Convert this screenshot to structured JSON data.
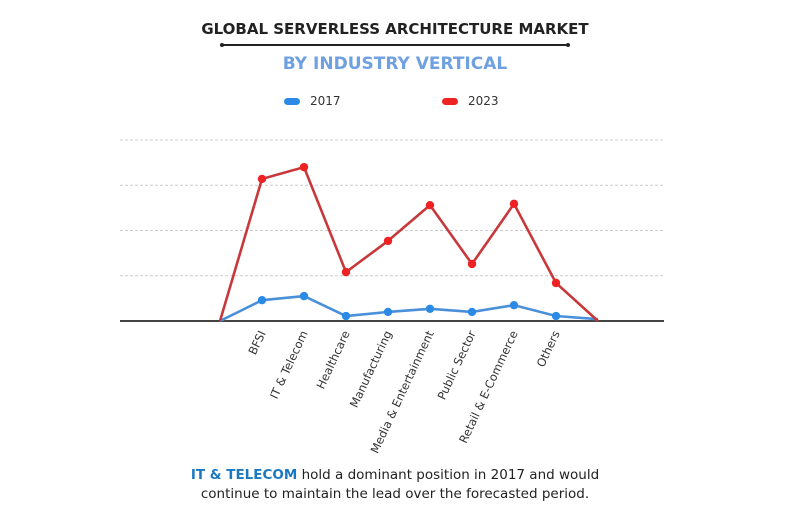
{
  "chart_data": {
    "type": "line",
    "title": "GLOBAL SERVERLESS ARCHITECTURE MARKET",
    "subtitle": "BY INDUSTRY VERTICAL",
    "categories": [
      "",
      "BFSI",
      "IT & Telecom",
      "Healthcare",
      "Manufacturing",
      "Media & Entertainment",
      "Public Sector",
      "Retail & E-Commerce",
      "Others",
      ""
    ],
    "series": [
      {
        "name": "2017",
        "color": "#2b8ae6",
        "line_color": "#4a90d9",
        "values": [
          0,
          0.46,
          0.55,
          0.11,
          0.2,
          0.27,
          0.2,
          0.35,
          0.11,
          0.04
        ]
      },
      {
        "name": "2023",
        "color": "#ee2222",
        "line_color": "#c8383a",
        "values": [
          0,
          3.14,
          3.4,
          1.08,
          1.77,
          2.56,
          1.26,
          2.59,
          0.84,
          0
        ]
      }
    ],
    "ylim": [
      0,
      4
    ],
    "y_tick_labels_shown": false,
    "grid": true,
    "legend": "top"
  },
  "caption": {
    "highlight": "IT & TELECOM",
    "line1": " hold a dominant position in 2017 and would",
    "line2": "continue to maintain the lead over the forecasted period."
  }
}
